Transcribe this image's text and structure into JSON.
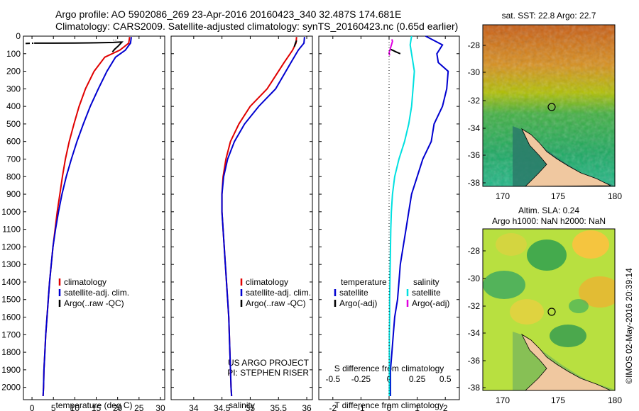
{
  "header": {
    "line1": "Argo profile: AO 5902086_269 23-Apr-2016 20160423_340 32.487S 174.681E",
    "line2": "Climatology: CARS2009. Satellite-adjusted climatology: synTS_20160423.nc (0.65d earlier)"
  },
  "colors": {
    "climatology": "#e00000",
    "satellite": "#0000d0",
    "argo": "#000000",
    "salinity_satellite": "#00e0e0",
    "salinity_argo": "#e000e0"
  },
  "chart_data": [
    {
      "type": "line",
      "panel": "temperature",
      "xlabel": "temperature (deg C)",
      "ylabel": "",
      "xlim": [
        -2,
        31
      ],
      "ylim": [
        2070,
        0
      ],
      "xticks": [
        0,
        5,
        10,
        15,
        20,
        25,
        30
      ],
      "yticks": [
        0,
        100,
        200,
        300,
        400,
        500,
        600,
        700,
        800,
        900,
        1000,
        1100,
        1200,
        1300,
        1400,
        1500,
        1600,
        1700,
        1800,
        1900,
        2000
      ],
      "legend": [
        "climatology",
        "satellite-adj. clim.",
        "Argo(..raw -QC)"
      ],
      "series": [
        {
          "name": "climatology",
          "x": [
            22.8,
            22.6,
            20.5,
            17.0,
            14.5,
            12.5,
            11.0,
            9.8,
            8.7,
            7.8,
            7.1,
            6.5,
            5.9,
            5.4,
            4.9,
            4.5,
            4.1,
            3.8,
            3.5,
            3.2,
            3.0,
            2.8,
            2.7,
            2.6
          ],
          "y": [
            5,
            40,
            80,
            120,
            200,
            300,
            400,
            500,
            600,
            700,
            800,
            900,
            1000,
            1100,
            1200,
            1300,
            1400,
            1500,
            1600,
            1700,
            1800,
            1900,
            2000,
            2050
          ]
        },
        {
          "name": "satellite-adj. clim.",
          "x": [
            23.2,
            23.0,
            21.8,
            19.5,
            17.5,
            15.5,
            13.6,
            12.0,
            10.5,
            9.2,
            8.0,
            7.0,
            6.2,
            5.5,
            4.9,
            4.5,
            4.1,
            3.8,
            3.5,
            3.2,
            3.0,
            2.8,
            2.7,
            2.6
          ],
          "y": [
            5,
            40,
            80,
            120,
            200,
            300,
            400,
            500,
            600,
            700,
            800,
            900,
            1000,
            1100,
            1200,
            1300,
            1400,
            1500,
            1600,
            1700,
            1800,
            1900,
            2000,
            2050
          ]
        },
        {
          "name": "Argo(..raw -QC)",
          "x": [
            0.5,
            5,
            10,
            15,
            19,
            20.5,
            21,
            20.2,
            19.3,
            18.8
          ],
          "y": [
            40,
            40,
            39,
            38,
            36,
            34,
            34,
            55,
            75,
            90
          ]
        }
      ]
    },
    {
      "type": "line",
      "panel": "salinity",
      "xlabel": "salinity",
      "ylabel": "",
      "xlim": [
        33.6,
        36.1
      ],
      "ylim": [
        2070,
        0
      ],
      "xticks": [
        34,
        34.5,
        35,
        35.5,
        36
      ],
      "legend": [
        "climatology",
        "satellite-adj. clim.",
        "Argo(..raw -QC)"
      ],
      "series": [
        {
          "name": "climatology",
          "x": [
            35.82,
            35.81,
            35.75,
            35.6,
            35.3,
            35.0,
            34.8,
            34.65,
            34.57,
            34.52,
            34.5,
            34.5,
            34.52,
            34.54,
            34.56,
            34.58,
            34.6,
            34.62,
            34.63,
            34.64,
            34.65,
            34.66,
            34.67
          ],
          "y": [
            5,
            40,
            80,
            150,
            300,
            400,
            500,
            600,
            700,
            800,
            900,
            1000,
            1100,
            1200,
            1300,
            1400,
            1500,
            1600,
            1700,
            1800,
            1900,
            2000,
            2050
          ]
        },
        {
          "name": "satellite-adj. clim.",
          "x": [
            35.96,
            35.95,
            35.85,
            35.72,
            35.45,
            35.15,
            34.9,
            34.72,
            34.6,
            34.53,
            34.5,
            34.5,
            34.52,
            34.54,
            34.56,
            34.58,
            34.6,
            34.62,
            34.63,
            34.64,
            34.65,
            34.66,
            34.67
          ],
          "y": [
            5,
            40,
            80,
            150,
            300,
            400,
            500,
            600,
            700,
            800,
            900,
            1000,
            1100,
            1200,
            1300,
            1400,
            1500,
            1600,
            1700,
            1800,
            1900,
            2000,
            2050
          ]
        },
        {
          "name": "Argo(..raw -QC)",
          "x": [
            35.78,
            35.8,
            35.82
          ],
          "y": [
            60,
            40,
            25
          ]
        }
      ]
    },
    {
      "type": "line",
      "panel": "difference",
      "xlabel": "T difference from climatology",
      "xlabel2": "S difference from climatology",
      "ylabel": "",
      "xlim": [
        -2.5,
        2.5
      ],
      "ylim": [
        2070,
        0
      ],
      "xticks": [
        -2,
        -1,
        0,
        1,
        2
      ],
      "xticks2": [
        -0.5,
        -0.25,
        0,
        0.25,
        0.5
      ],
      "legend_title_t": "temperature",
      "legend_title_s": "salinity",
      "legend": [
        "satellite",
        "Argo(-adj)",
        "satellite",
        "Argo(-adj)"
      ],
      "series": [
        {
          "name": "satellite",
          "x": [
            1.3,
            1.9,
            1.7,
            1.75,
            2.1,
            2.05,
            1.9,
            1.6,
            1.5,
            1.2,
            1.0,
            0.8,
            0.7,
            0.6,
            0.5,
            0.4,
            0.35,
            0.3,
            0.2,
            0.15,
            0.1,
            0.05,
            0.05
          ],
          "y": [
            0,
            50,
            100,
            150,
            200,
            300,
            400,
            500,
            600,
            700,
            800,
            900,
            1000,
            1100,
            1200,
            1300,
            1400,
            1500,
            1600,
            1700,
            1800,
            1900,
            2050
          ]
        },
        {
          "name": "satellite (S)",
          "x": [
            0.8,
            0.75,
            0.8,
            0.9,
            0.85,
            0.8,
            0.7,
            0.55,
            0.35,
            0.2,
            0.12,
            0.08,
            0.06,
            0.05,
            0.04,
            0.03,
            0.02,
            0.02,
            0.01,
            0.01,
            0.01
          ],
          "y": [
            0,
            50,
            100,
            200,
            300,
            400,
            500,
            600,
            700,
            800,
            900,
            1000,
            1100,
            1200,
            1300,
            1400,
            1500,
            1600,
            1700,
            1800,
            2050
          ]
        },
        {
          "name": "Argo(-adj) T",
          "x": [
            0.05,
            0.15,
            0.25,
            0.4
          ],
          "y": [
            75,
            82,
            90,
            100
          ]
        },
        {
          "name": "Argo(-adj) S",
          "x": [
            0.1,
            0.12,
            0.0,
            0.02
          ],
          "y": [
            18,
            30,
            95,
            110
          ]
        }
      ],
      "credit1": "US ARGO PROJECT",
      "credit2": "PI: STEPHEN RISER"
    }
  ],
  "maps": {
    "top": {
      "title": "sat. SST: 22.8 Argo: 22.7",
      "yticks": [
        "-28",
        "-30",
        "-32",
        "-34",
        "-36",
        "-38"
      ],
      "xticks": [
        "170",
        "175",
        "180"
      ]
    },
    "bottom": {
      "title1": "Altim. SLA: 0.24",
      "title2": "Argo h1000: NaN h2000: NaN",
      "yticks": [
        "-28",
        "-30",
        "-32",
        "-34",
        "-36",
        "-38"
      ],
      "xticks": [
        "170",
        "175",
        "180"
      ]
    },
    "credit": "©IMOS 02-May-2016 20:39:14"
  }
}
